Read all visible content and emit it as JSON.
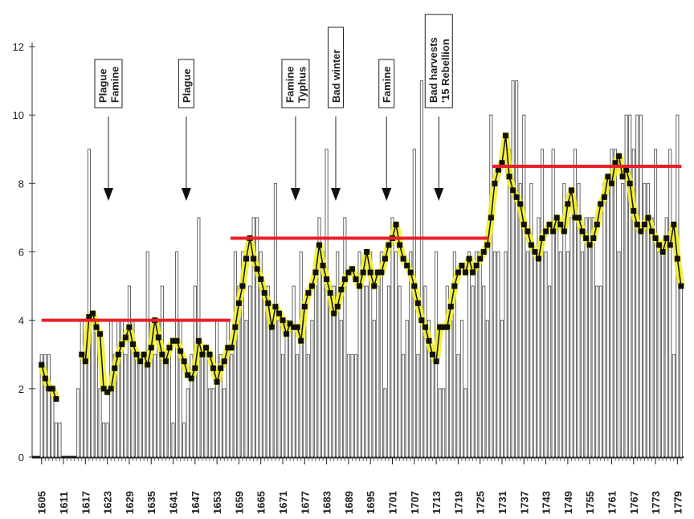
{
  "chart_data": {
    "type": "bar",
    "x": [
      1605,
      1606,
      1607,
      1608,
      1609,
      1610,
      1611,
      1612,
      1613,
      1614,
      1615,
      1616,
      1617,
      1618,
      1619,
      1620,
      1621,
      1622,
      1623,
      1624,
      1625,
      1626,
      1627,
      1628,
      1629,
      1630,
      1631,
      1632,
      1633,
      1634,
      1635,
      1636,
      1637,
      1638,
      1639,
      1640,
      1641,
      1642,
      1643,
      1644,
      1645,
      1646,
      1647,
      1648,
      1649,
      1650,
      1651,
      1652,
      1653,
      1654,
      1655,
      1656,
      1657,
      1658,
      1659,
      1660,
      1661,
      1662,
      1663,
      1664,
      1665,
      1666,
      1667,
      1668,
      1669,
      1670,
      1671,
      1672,
      1673,
      1674,
      1675,
      1676,
      1677,
      1678,
      1679,
      1680,
      1681,
      1682,
      1683,
      1684,
      1685,
      1686,
      1687,
      1688,
      1689,
      1690,
      1691,
      1692,
      1693,
      1694,
      1695,
      1696,
      1697,
      1698,
      1699,
      1700,
      1701,
      1702,
      1703,
      1704,
      1705,
      1706,
      1707,
      1708,
      1709,
      1710,
      1711,
      1712,
      1713,
      1714,
      1715,
      1716,
      1717,
      1718,
      1719,
      1720,
      1721,
      1722,
      1723,
      1724,
      1725,
      1726,
      1727,
      1728,
      1729,
      1730,
      1731,
      1732,
      1733,
      1734,
      1735,
      1736,
      1737,
      1738,
      1739,
      1740,
      1741,
      1742,
      1743,
      1744,
      1745,
      1746,
      1747,
      1748,
      1749,
      1750,
      1751,
      1752,
      1753,
      1754,
      1755,
      1756,
      1757,
      1758,
      1759,
      1760,
      1761,
      1762,
      1763,
      1764,
      1765,
      1766,
      1767,
      1768,
      1769,
      1770,
      1771,
      1772,
      1773,
      1774,
      1775,
      1776,
      1777,
      1778,
      1779,
      1780
    ],
    "series": [
      {
        "kind": "bar",
        "color": "#555555",
        "values": [
          3,
          3,
          3,
          2,
          1,
          1,
          0,
          0,
          0,
          0,
          2,
          4,
          3,
          9,
          4,
          4,
          2,
          1,
          1,
          4,
          3,
          4,
          4,
          3,
          5,
          4,
          3,
          3,
          3,
          6,
          4,
          3,
          4,
          5,
          3,
          3,
          1,
          6,
          4,
          1,
          2,
          3,
          5,
          7,
          3,
          3,
          2,
          2,
          4,
          3,
          2,
          4,
          3,
          6,
          5,
          6,
          4,
          5,
          7,
          7,
          6,
          5,
          5,
          4,
          8,
          4,
          3,
          4,
          4,
          5,
          3,
          6,
          4,
          3,
          4,
          5,
          7,
          6,
          9,
          5,
          5,
          6,
          4,
          7,
          3,
          3,
          3,
          6,
          5,
          5,
          6,
          4,
          5,
          6,
          2,
          5,
          7,
          6,
          5,
          3,
          4,
          6,
          9,
          3,
          11,
          5,
          4,
          3,
          6,
          2,
          2,
          5,
          4,
          6,
          3,
          4,
          2,
          6,
          5,
          6,
          6,
          5,
          4,
          10,
          6,
          6,
          4,
          6,
          9,
          11,
          11,
          8,
          10,
          6,
          8,
          6,
          7,
          9,
          6,
          5,
          9,
          7,
          6,
          8,
          6,
          7,
          9,
          8,
          6,
          7,
          7,
          7,
          5,
          5,
          8,
          8,
          9,
          9,
          6,
          8,
          10,
          10,
          9,
          10,
          10,
          8,
          8,
          7,
          9,
          6,
          6,
          7,
          9,
          3,
          10,
          5
        ]
      },
      {
        "kind": "line",
        "color": "#111111",
        "highlight": "#f2ef2a",
        "values": [
          2.7,
          2.3,
          2.0,
          2.0,
          1.7,
          null,
          null,
          null,
          null,
          null,
          null,
          3.0,
          2.8,
          4.1,
          4.2,
          3.8,
          3.6,
          2.0,
          1.9,
          2.0,
          2.6,
          3.0,
          3.3,
          3.5,
          3.8,
          3.3,
          3.0,
          2.8,
          3.0,
          2.7,
          3.2,
          4.0,
          3.5,
          3.0,
          2.8,
          3.2,
          3.4,
          3.4,
          3.1,
          2.8,
          2.4,
          2.3,
          2.6,
          3.4,
          3.0,
          3.2,
          3.0,
          2.6,
          2.2,
          2.6,
          2.8,
          3.2,
          3.2,
          3.8,
          4.5,
          5.0,
          5.8,
          6.4,
          5.8,
          5.5,
          5.2,
          4.8,
          4.5,
          3.8,
          4.4,
          4.2,
          4.0,
          3.6,
          3.9,
          3.8,
          3.8,
          3.4,
          4.4,
          4.8,
          5.0,
          5.4,
          6.2,
          5.6,
          5.2,
          4.8,
          4.2,
          4.4,
          4.9,
          5.2,
          5.4,
          5.5,
          5.2,
          5.0,
          5.4,
          6.0,
          5.4,
          5.0,
          5.4,
          5.4,
          5.8,
          6.2,
          6.4,
          6.8,
          6.2,
          5.8,
          5.6,
          5.4,
          5.0,
          4.5,
          4.0,
          3.8,
          3.4,
          3.0,
          2.8,
          3.8,
          3.8,
          3.8,
          4.4,
          5.0,
          5.4,
          5.6,
          5.4,
          5.8,
          5.4,
          5.6,
          5.8,
          6.0,
          6.2,
          7.0,
          8.0,
          8.4,
          8.6,
          9.4,
          8.2,
          7.8,
          7.6,
          7.4,
          6.8,
          6.6,
          6.2,
          6.0,
          5.8,
          6.4,
          6.6,
          6.8,
          6.6,
          7.0,
          6.8,
          6.6,
          7.4,
          7.8,
          7.0,
          7.0,
          6.6,
          6.4,
          6.2,
          6.4,
          6.8,
          7.4,
          7.6,
          8.2,
          8.0,
          8.6,
          8.8,
          8.2,
          8.4,
          8.0,
          7.2,
          6.8,
          6.6,
          6.8,
          7.0,
          6.6,
          6.4,
          6.2,
          6.0,
          6.4,
          6.2,
          6.8,
          5.8,
          5.0
        ]
      }
    ],
    "period_means": [
      {
        "start": 1605,
        "end": 1656.7,
        "value": 4.0,
        "color": "#e8202a"
      },
      {
        "start": 1656.7,
        "end": 1727.3,
        "value": 6.4,
        "color": "#e8202a"
      },
      {
        "start": 1728.3,
        "end": 1780.1,
        "value": 8.5,
        "color": "#e8202a"
      }
    ],
    "annotations": [
      {
        "lines": [
          "Plague",
          "Famine"
        ],
        "x": 1623.3
      },
      {
        "lines": [
          "Plague"
        ],
        "x": 1644.6
      },
      {
        "lines": [
          "Famine",
          "Typhus"
        ],
        "x": 1674.5
      },
      {
        "lines": [
          "Bad  winter"
        ],
        "x": 1685.5
      },
      {
        "lines": [
          "Famine"
        ],
        "x": 1699.4
      },
      {
        "lines": [
          "Bad harvests",
          "'15 Rebellion"
        ],
        "x": 1713.7
      }
    ],
    "xlim": [
      1600,
      1782
    ],
    "xticks": [
      1605,
      1611,
      1617,
      1623,
      1629,
      1635,
      1641,
      1647,
      1653,
      1659,
      1665,
      1671,
      1677,
      1683,
      1689,
      1695,
      1701,
      1707,
      1713,
      1719,
      1725,
      1731,
      1737,
      1743,
      1749,
      1755,
      1761,
      1767,
      1773,
      1779
    ],
    "ylim": [
      0,
      12
    ],
    "yticks": [
      0,
      2,
      4,
      6,
      8,
      10,
      12
    ]
  }
}
